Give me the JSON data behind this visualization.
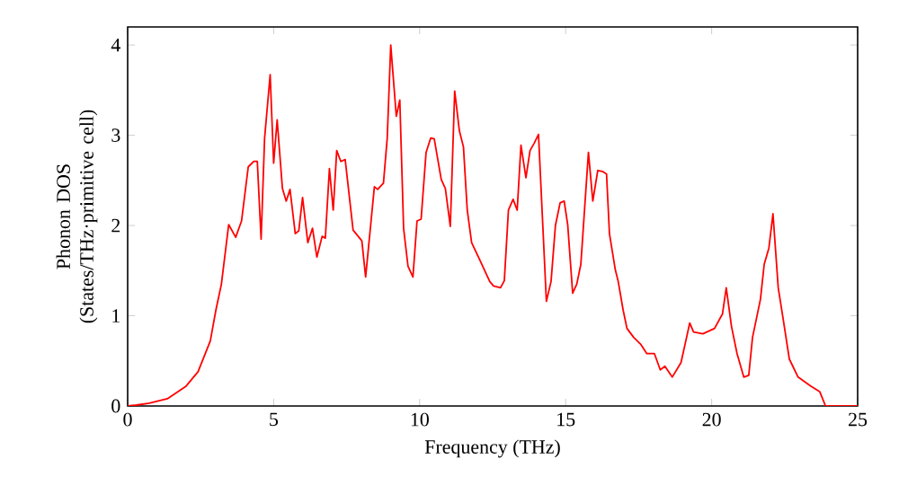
{
  "chart_data": {
    "type": "line",
    "xlabel": "Frequency (THz)",
    "ylabel": "Phonon DOS (States/THz·primitive cell)",
    "xlim": [
      0,
      25
    ],
    "ylim": [
      0,
      4.2
    ],
    "xticks": [
      0,
      5,
      10,
      15,
      20,
      25
    ],
    "yticks": [
      0,
      1,
      2,
      3,
      4
    ],
    "marker": "none",
    "series": [
      {
        "color": "#ff0000",
        "x": [
          0,
          0.3,
          0.74,
          1.36,
          2.0,
          2.41,
          2.83,
          3.02,
          3.21,
          3.46,
          3.7,
          3.9,
          4.13,
          4.32,
          4.44,
          4.57,
          4.69,
          4.88,
          5.0,
          5.12,
          5.3,
          5.43,
          5.56,
          5.74,
          5.86,
          5.99,
          6.17,
          6.33,
          6.48,
          6.66,
          6.77,
          6.91,
          7.04,
          7.16,
          7.3,
          7.45,
          7.72,
          8.02,
          8.15,
          8.45,
          8.56,
          8.76,
          8.89,
          9.01,
          9.2,
          9.32,
          9.45,
          9.6,
          9.77,
          9.91,
          10.05,
          10.22,
          10.38,
          10.5,
          10.74,
          10.88,
          11.05,
          11.2,
          11.36,
          11.5,
          11.63,
          11.78,
          12.07,
          12.4,
          12.53,
          12.77,
          12.9,
          13.04,
          13.2,
          13.34,
          13.47,
          13.64,
          13.78,
          13.92,
          14.07,
          14.34,
          14.5,
          14.65,
          14.81,
          14.95,
          15.07,
          15.24,
          15.38,
          15.52,
          15.78,
          15.93,
          16.1,
          16.26,
          16.4,
          16.5,
          16.7,
          16.8,
          16.97,
          17.1,
          17.33,
          17.58,
          17.78,
          18.04,
          18.24,
          18.4,
          18.65,
          18.95,
          19.25,
          19.38,
          19.7,
          20.1,
          20.37,
          20.5,
          20.68,
          20.87,
          21.1,
          21.27,
          21.4,
          21.67,
          21.8,
          21.96,
          22.1,
          22.28,
          22.47,
          22.66,
          22.96,
          23.4,
          23.7,
          23.9,
          25
        ],
        "values": [
          0,
          0.01,
          0.03,
          0.08,
          0.22,
          0.38,
          0.72,
          1.06,
          1.35,
          2.01,
          1.87,
          2.05,
          2.65,
          2.71,
          2.71,
          1.85,
          2.97,
          3.67,
          2.69,
          3.17,
          2.41,
          2.27,
          2.4,
          1.91,
          1.94,
          2.31,
          1.81,
          1.97,
          1.65,
          1.88,
          1.86,
          2.63,
          2.17,
          2.83,
          2.71,
          2.73,
          1.95,
          1.83,
          1.43,
          2.43,
          2.4,
          2.47,
          2.97,
          4.0,
          3.21,
          3.39,
          1.97,
          1.55,
          1.43,
          2.05,
          2.07,
          2.81,
          2.97,
          2.96,
          2.51,
          2.41,
          1.99,
          3.49,
          3.05,
          2.87,
          2.17,
          1.81,
          1.61,
          1.38,
          1.33,
          1.31,
          1.39,
          2.17,
          2.29,
          2.17,
          2.89,
          2.53,
          2.83,
          2.91,
          3.01,
          1.16,
          1.38,
          2.0,
          2.25,
          2.27,
          2.01,
          1.25,
          1.35,
          1.57,
          2.81,
          2.27,
          2.61,
          2.6,
          2.57,
          1.91,
          1.51,
          1.38,
          1.06,
          0.86,
          0.76,
          0.68,
          0.58,
          0.58,
          0.4,
          0.44,
          0.32,
          0.48,
          0.92,
          0.82,
          0.8,
          0.86,
          1.02,
          1.31,
          0.88,
          0.58,
          0.32,
          0.34,
          0.76,
          1.18,
          1.57,
          1.75,
          2.13,
          1.31,
          0.92,
          0.52,
          0.32,
          0.22,
          0.16,
          0,
          0
        ]
      }
    ]
  }
}
